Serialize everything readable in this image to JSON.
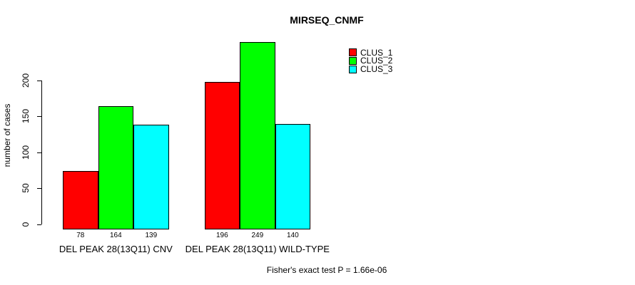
{
  "chart_data": {
    "type": "bar",
    "title": "MIRSEQ_CNMF",
    "ylabel": "number of cases",
    "xlabel": "",
    "footer": "Fisher's exact test P = 1.66e-06",
    "categories": [
      "DEL PEAK 28(13Q11) CNV",
      "DEL PEAK 28(13Q11) WILD-TYPE"
    ],
    "series": [
      {
        "name": "CLUS_1",
        "color": "#ff0000",
        "values": [
          78,
          196
        ]
      },
      {
        "name": "CLUS_2",
        "color": "#00ff00",
        "values": [
          164,
          249
        ]
      },
      {
        "name": "CLUS_3",
        "color": "#00ffff",
        "values": [
          139,
          140
        ]
      }
    ],
    "y_ticks": [
      0,
      50,
      100,
      150,
      200
    ],
    "ylim": [
      0,
      249
    ],
    "grid": false,
    "legend_position": "inside-top-right",
    "bar_border_color": "#000000",
    "background_color": "#ffffff",
    "show_bar_value_labels": true
  }
}
